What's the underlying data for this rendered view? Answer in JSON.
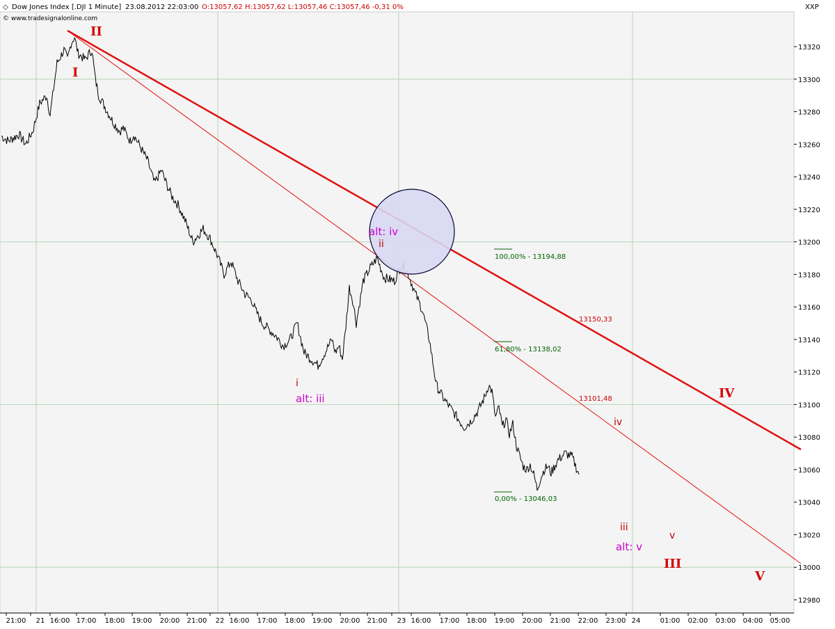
{
  "header": {
    "instrument": "Dow Jones Index [.DJI  1 Minute]",
    "datetime": "23.08.2012 22:03:00",
    "ohlc": "O:13057,62 H:13057,62 L:13057,46 C:13057,46 -0,31 0%",
    "watermark": "© www.tradesignalonline.com",
    "symbol_right": "XXP"
  },
  "chart_data": {
    "type": "line",
    "title": "Dow Jones Index [.DJI  1 Minute]",
    "ylim": [
      12970,
      13330
    ],
    "y_ticks": [
      13320,
      13300,
      13280,
      13260,
      13240,
      13220,
      13200,
      13180,
      13160,
      13140,
      13120,
      13100,
      13080,
      13060,
      13040,
      13020,
      13000,
      12980
    ],
    "x_ticks": [
      "21:00",
      "21",
      "16:00",
      "17:00",
      "18:00",
      "19:00",
      "20:00",
      "21:00",
      "22",
      "16:00",
      "17:00",
      "18:00",
      "19:00",
      "20:00",
      "21:00",
      "23",
      "16:00",
      "17:00",
      "18:00",
      "19:00",
      "20:00",
      "21:00",
      "22:00",
      "23:00",
      "24",
      "01:00",
      "02:00",
      "03:00",
      "04:00",
      "05:00"
    ],
    "day_separators": [
      "21",
      "22",
      "23",
      "24"
    ],
    "series": [
      {
        "name": "",
        "x": [
          0,
          2,
          5,
          7,
          9,
          11,
          13,
          14,
          16,
          18,
          19,
          20,
          21,
          22,
          24,
          26,
          27,
          28,
          30,
          32,
          34,
          35,
          37,
          38,
          40,
          42,
          44,
          46,
          47,
          49,
          51,
          53,
          55,
          58,
          60,
          62,
          64,
          66,
          68,
          70,
          72,
          73,
          75,
          77,
          79,
          81,
          83,
          85,
          87,
          89,
          91,
          93,
          94,
          95,
          96,
          97,
          98,
          99,
          100,
          101,
          102,
          104,
          106,
          108,
          110,
          113,
          115,
          117,
          119,
          121,
          123,
          125,
          127,
          129,
          131,
          133,
          135,
          137,
          139,
          140,
          141,
          142,
          143,
          144,
          145,
          146,
          147,
          148,
          149,
          150,
          151,
          152,
          153,
          154,
          155,
          156,
          157,
          158,
          160,
          162,
          164,
          166
        ],
        "y": [
          13265,
          13262,
          13266,
          13260,
          13268,
          13285,
          13290,
          13278,
          13310,
          13318,
          13312,
          13322,
          13326,
          13316,
          13312,
          13318,
          13300,
          13290,
          13282,
          13274,
          13268,
          13270,
          13262,
          13266,
          13258,
          13250,
          13236,
          13244,
          13238,
          13228,
          13222,
          13212,
          13200,
          13208,
          13202,
          13192,
          13180,
          13188,
          13176,
          13168,
          13164,
          13158,
          13150,
          13146,
          13142,
          13136,
          13140,
          13150,
          13132,
          13128,
          13124,
          13132,
          13136,
          13140,
          13132,
          13136,
          13128,
          13148,
          13172,
          13164,
          13150,
          13176,
          13184,
          13190,
          13178,
          13176,
          13186,
          13180,
          13168,
          13158,
          13140,
          13112,
          13104,
          13098,
          13092,
          13086,
          13090,
          13096,
          13105,
          13112,
          13108,
          13092,
          13098,
          13086,
          13091,
          13082,
          13088,
          13075,
          13068,
          13062,
          13060,
          13063,
          13057,
          13048,
          13055,
          13060,
          13062,
          13058,
          13066,
          13070,
          13068,
          13057
        ]
      }
    ],
    "x_note": "x in minutes of session index (0 = left edge), plotted on the category time axis"
  },
  "fib_levels": [
    {
      "label": "100,00% - 13194,88",
      "value": 13194.88
    },
    {
      "label": "61,80% - 13138,02",
      "value": 13138.02
    },
    {
      "label": "0,00% - 13046,03",
      "value": 13046.03
    }
  ],
  "trend_labels": [
    {
      "label": "13150,33",
      "value": 13150.33
    },
    {
      "label": "13101,48",
      "value": 13101.48
    }
  ],
  "waves": {
    "big": [
      "I",
      "II",
      "III",
      "IV",
      "V"
    ],
    "small": [
      "i",
      "ii",
      "iii",
      "iv",
      "v"
    ],
    "alt": [
      "alt: iii",
      "alt: iv",
      "alt: v"
    ]
  },
  "colors": {
    "plot_bg": "#f4f4f4",
    "grid": "#b8d4b8",
    "price": "#000000",
    "trend": "#e01010",
    "fib": "#006400",
    "circle_fill": "#d8d8f4",
    "circle_stroke": "#000033"
  }
}
